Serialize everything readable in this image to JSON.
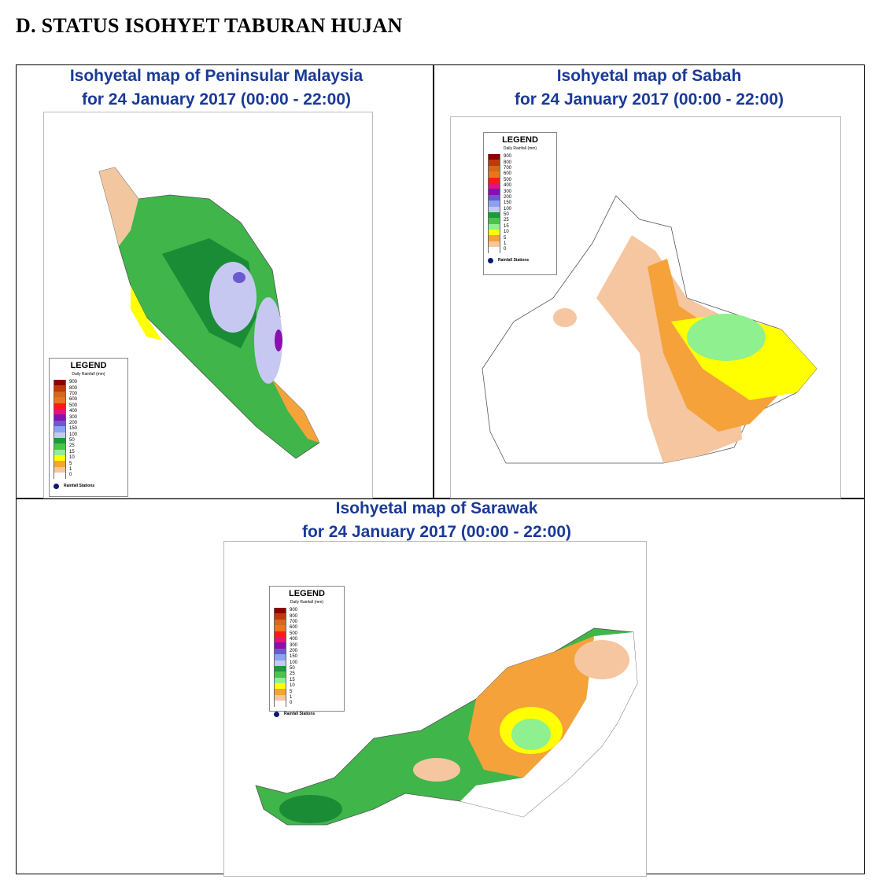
{
  "heading": "D.  STATUS ISOHYET TABURAN HUJAN",
  "legend": {
    "title": "LEGEND",
    "subtitle": "Daily Rainfall (mm)",
    "levels": [
      "900",
      "800",
      "700",
      "600",
      "500",
      "400",
      "300",
      "200",
      "150",
      "100",
      "50",
      "25",
      "15",
      "10",
      "5",
      "1",
      "0"
    ],
    "colors": [
      "#8b0000",
      "#c0390b",
      "#d2691e",
      "#e8761e",
      "#ff1a1a",
      "#e0137f",
      "#8a0fb0",
      "#6a5acd",
      "#8aa2f0",
      "#c6c8f2",
      "#1a9a3a",
      "#4cc34c",
      "#8ef08e",
      "#ffff00",
      "#f5a23a",
      "#f5c6a0",
      "#ffffff"
    ],
    "stations": "Rainfall Stations"
  },
  "panels": [
    {
      "title": [
        "Isohyetal map of Peninsular Malaysia",
        "for 24 January 2017 (00:00 - 22:00)"
      ]
    },
    {
      "title": [
        "Isohyetal map of Sabah",
        "for 24 January 2017 (00:00 - 22:00)"
      ]
    },
    {
      "title": [
        "Isohyetal map of Sarawak",
        "for 24 January 2017 (00:00 - 22:00)"
      ]
    }
  ]
}
